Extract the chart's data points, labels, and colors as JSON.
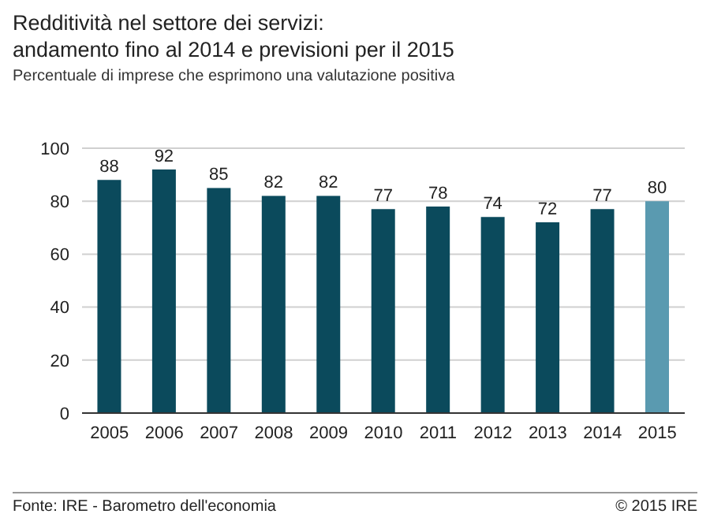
{
  "chart_data": {
    "type": "bar",
    "title": "Redditività nel settore dei servizi:\nandamento fino al 2014 e previsioni per il 2015",
    "subtitle": "Percentuale di imprese che esprimono una valutazione positiva",
    "categories": [
      "2005",
      "2006",
      "2007",
      "2008",
      "2009",
      "2010",
      "2011",
      "2012",
      "2013",
      "2014",
      "2015"
    ],
    "values": [
      88,
      92,
      85,
      82,
      82,
      77,
      78,
      74,
      72,
      77,
      80
    ],
    "colors": [
      "#0b4a5c",
      "#0b4a5c",
      "#0b4a5c",
      "#0b4a5c",
      "#0b4a5c",
      "#0b4a5c",
      "#0b4a5c",
      "#0b4a5c",
      "#0b4a5c",
      "#0b4a5c",
      "#5a9ab0"
    ],
    "ylim": [
      0,
      100
    ],
    "yticks": [
      0,
      20,
      40,
      60,
      80,
      100
    ],
    "grid": "y",
    "data_labels": true,
    "annotations": [
      "Fonte: IRE - Barometro dell'economia",
      "© 2015 IRE"
    ]
  }
}
